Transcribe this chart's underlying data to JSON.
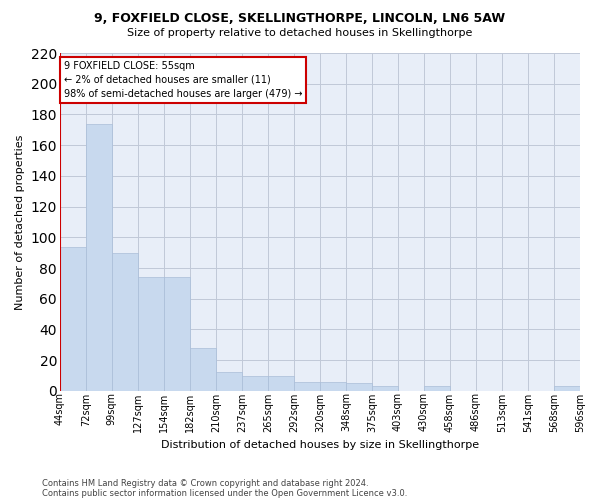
{
  "title": "9, FOXFIELD CLOSE, SKELLINGTHORPE, LINCOLN, LN6 5AW",
  "subtitle": "Size of property relative to detached houses in Skellingthorpe",
  "xlabel": "Distribution of detached houses by size in Skellingthorpe",
  "ylabel": "Number of detached properties",
  "footnote1": "Contains HM Land Registry data © Crown copyright and database right 2024.",
  "footnote2": "Contains public sector information licensed under the Open Government Licence v3.0.",
  "bar_color": "#c8d9ee",
  "bar_edge_color": "#aabdd8",
  "grid_color": "#c0c8d8",
  "bg_color": "#e8eef8",
  "property_line_color": "#cc0000",
  "annotation_box_color": "#cc0000",
  "annotation_line1": "9 FOXFIELD CLOSE: 55sqm",
  "annotation_line2": "← 2% of detached houses are smaller (11)",
  "annotation_line3": "98% of semi-detached houses are larger (479) →",
  "property_bin_index": 0,
  "bin_labels": [
    "44sqm",
    "72sqm",
    "99sqm",
    "127sqm",
    "154sqm",
    "182sqm",
    "210sqm",
    "237sqm",
    "265sqm",
    "292sqm",
    "320sqm",
    "348sqm",
    "375sqm",
    "403sqm",
    "430sqm",
    "458sqm",
    "486sqm",
    "513sqm",
    "541sqm",
    "568sqm",
    "596sqm"
  ],
  "bar_heights": [
    94,
    174,
    90,
    74,
    74,
    28,
    12,
    10,
    10,
    6,
    6,
    5,
    3,
    0,
    3,
    0,
    0,
    0,
    0,
    3
  ],
  "ylim": [
    0,
    220
  ],
  "yticks": [
    0,
    20,
    40,
    60,
    80,
    100,
    120,
    140,
    160,
    180,
    200,
    220
  ],
  "title_fontsize": 9,
  "subtitle_fontsize": 8,
  "ylabel_fontsize": 8,
  "xlabel_fontsize": 8,
  "tick_fontsize": 7,
  "footnote_fontsize": 6
}
